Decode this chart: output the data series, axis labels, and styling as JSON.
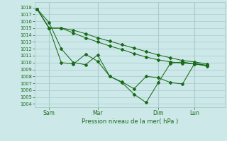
{
  "xlabel": "Pression niveau de la mer( hPa )",
  "ylim": [
    1003.5,
    1018.8
  ],
  "yticks": [
    1004,
    1005,
    1006,
    1007,
    1008,
    1009,
    1010,
    1011,
    1012,
    1013,
    1014,
    1015,
    1016,
    1017,
    1018
  ],
  "bg_color": "#cce8e8",
  "grid_color": "#aacccc",
  "line_color": "#1a6b1a",
  "xtick_labels": [
    "Sam",
    "Mar",
    "Dim",
    "Lun"
  ],
  "xtick_positions": [
    1,
    5,
    10,
    13
  ],
  "series": [
    {
      "x": [
        0,
        1,
        2,
        3,
        4,
        5,
        6,
        7,
        8,
        9,
        10,
        11,
        12,
        13,
        14
      ],
      "y": [
        1017.8,
        1015.8,
        1012.0,
        1010.0,
        1009.7,
        1011.1,
        1008.0,
        1007.1,
        1005.4,
        1004.2,
        1007.1,
        1009.9,
        1010.1,
        1009.8,
        1009.5
      ]
    },
    {
      "x": [
        0,
        1,
        2,
        3,
        4,
        5,
        6,
        7,
        8,
        9,
        10,
        11,
        12,
        13,
        14
      ],
      "y": [
        1017.8,
        1015.0,
        1010.0,
        1009.8,
        1011.2,
        1010.2,
        1008.0,
        1007.2,
        1006.2,
        1008.0,
        1007.8,
        1007.1,
        1006.9,
        1009.9,
        1009.6
      ]
    },
    {
      "x": [
        0,
        1,
        2,
        3,
        4,
        5,
        6,
        7,
        8,
        9,
        10,
        11,
        12,
        13,
        14
      ],
      "y": [
        1017.8,
        1015.0,
        1015.0,
        1014.3,
        1013.6,
        1013.0,
        1012.4,
        1011.9,
        1011.3,
        1010.8,
        1010.4,
        1010.1,
        1009.9,
        1009.8,
        1009.6
      ]
    },
    {
      "x": [
        0,
        1,
        2,
        3,
        4,
        5,
        6,
        7,
        8,
        9,
        10,
        11,
        12,
        13,
        14
      ],
      "y": [
        1017.8,
        1015.0,
        1015.0,
        1014.7,
        1014.2,
        1013.6,
        1013.1,
        1012.6,
        1012.1,
        1011.6,
        1011.1,
        1010.7,
        1010.3,
        1010.1,
        1009.8
      ]
    }
  ],
  "xlim": [
    -0.2,
    15.5
  ],
  "vline_positions": [
    1,
    5,
    10,
    13
  ]
}
